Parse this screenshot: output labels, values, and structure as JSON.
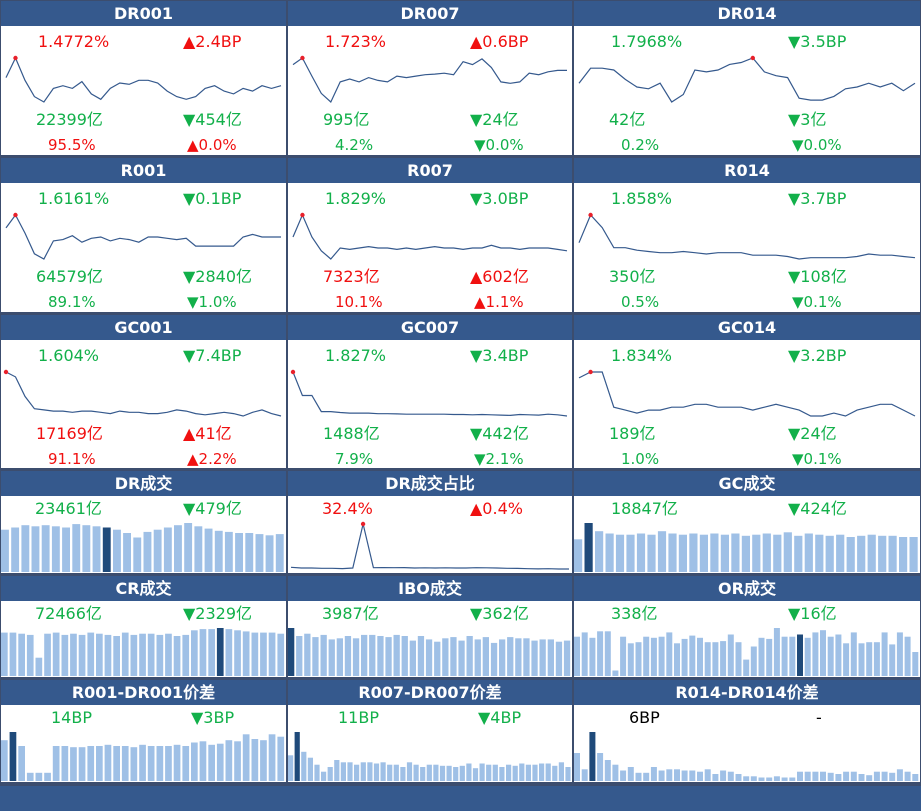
{
  "colors": {
    "header_bg": "#35598d",
    "up": "#f01010",
    "down": "#12b04a",
    "line": "#35598d",
    "bar": "#9fc0e6",
    "bar_hi": "#1f4a7a",
    "marker": "#e8202a"
  },
  "rate_panels": [
    {
      "title": "DR001",
      "rate": "1.4772%",
      "rate_dir": "up",
      "change": "▲2.4BP",
      "change_dir": "up",
      "volume": "22399亿",
      "volume_dir": "down",
      "vol_change": "▼454亿",
      "vol_change_dir": "down",
      "share": "95.5%",
      "share_dir": "up",
      "share_change": "▲0.0%",
      "share_change_dir": "up",
      "series": [
        1.4,
        1.472,
        1.39,
        1.33,
        1.31,
        1.36,
        1.37,
        1.36,
        1.385,
        1.34,
        1.32,
        1.36,
        1.38,
        1.375,
        1.39,
        1.39,
        1.38,
        1.35,
        1.33,
        1.32,
        1.33,
        1.36,
        1.37,
        1.35,
        1.34,
        1.36,
        1.35,
        1.37,
        1.36,
        1.37
      ]
    },
    {
      "title": "DR007",
      "rate": "1.723%",
      "rate_dir": "up",
      "change": "▲0.6BP",
      "change_dir": "up",
      "volume": "995亿",
      "volume_dir": "down",
      "vol_change": "▼24亿",
      "vol_change_dir": "down",
      "share": "4.2%",
      "share_dir": "down",
      "share_change": "▼0.0%",
      "share_change_dir": "down",
      "series": [
        1.7,
        1.723,
        1.66,
        1.6,
        1.57,
        1.64,
        1.65,
        1.64,
        1.655,
        1.645,
        1.64,
        1.66,
        1.655,
        1.66,
        1.665,
        1.667,
        1.67,
        1.665,
        1.71,
        1.7,
        1.72,
        1.69,
        1.64,
        1.635,
        1.64,
        1.67,
        1.665,
        1.675,
        1.68,
        1.68
      ]
    },
    {
      "title": "DR014",
      "rate": "1.7968%",
      "rate_dir": "down",
      "change": "▼3.5BP",
      "change_dir": "down",
      "volume": "42亿",
      "volume_dir": "down",
      "vol_change": "▼3亿",
      "vol_change_dir": "down",
      "share": "0.2%",
      "share_dir": "down",
      "share_change": "▼0.0%",
      "share_change_dir": "down",
      "series": [
        1.73,
        1.77,
        1.77,
        1.765,
        1.74,
        1.72,
        1.715,
        1.73,
        1.68,
        1.7,
        1.765,
        1.76,
        1.765,
        1.78,
        1.785,
        1.797,
        1.76,
        1.75,
        1.745,
        1.69,
        1.685,
        1.685,
        1.695,
        1.715,
        1.72,
        1.73,
        1.72,
        1.73,
        1.71,
        1.73
      ]
    },
    {
      "title": "R001",
      "rate": "1.6161%",
      "rate_dir": "down",
      "change": "▼0.1BP",
      "change_dir": "down",
      "volume": "64579亿",
      "volume_dir": "down",
      "vol_change": "▼2840亿",
      "vol_change_dir": "down",
      "share": "89.1%",
      "share_dir": "down",
      "share_change": "▼1.0%",
      "share_change_dir": "down",
      "series": [
        1.6,
        1.65,
        1.58,
        1.5,
        1.48,
        1.55,
        1.555,
        1.57,
        1.545,
        1.56,
        1.565,
        1.55,
        1.56,
        1.555,
        1.545,
        1.565,
        1.565,
        1.56,
        1.555,
        1.56,
        1.53,
        1.53,
        1.53,
        1.53,
        1.53,
        1.565,
        1.575,
        1.565,
        1.565,
        1.565
      ]
    },
    {
      "title": "R007",
      "rate": "1.829%",
      "rate_dir": "down",
      "change": "▼3.0BP",
      "change_dir": "down",
      "volume": "7323亿",
      "volume_dir": "up",
      "vol_change": "▲602亿",
      "vol_change_dir": "up",
      "share": "10.1%",
      "share_dir": "up",
      "share_change": "▲1.1%",
      "share_change_dir": "up",
      "series": [
        1.78,
        1.86,
        1.78,
        1.73,
        1.7,
        1.74,
        1.735,
        1.74,
        1.745,
        1.74,
        1.74,
        1.735,
        1.74,
        1.735,
        1.74,
        1.745,
        1.74,
        1.74,
        1.735,
        1.74,
        1.74,
        1.75,
        1.74,
        1.74,
        1.735,
        1.74,
        1.74,
        1.74,
        1.735,
        1.73
      ]
    },
    {
      "title": "R014",
      "rate": "1.858%",
      "rate_dir": "down",
      "change": "▼3.7BP",
      "change_dir": "down",
      "volume": "350亿",
      "volume_dir": "down",
      "vol_change": "▼108亿",
      "vol_change_dir": "down",
      "share": "0.5%",
      "share_dir": "down",
      "share_change": "▼0.1%",
      "share_change_dir": "down",
      "series": [
        1.78,
        1.89,
        1.84,
        1.76,
        1.76,
        1.75,
        1.745,
        1.74,
        1.74,
        1.745,
        1.74,
        1.735,
        1.74,
        1.74,
        1.74,
        1.73,
        1.73,
        1.73,
        1.725,
        1.715,
        1.72,
        1.72,
        1.72,
        1.72,
        1.725,
        1.735,
        1.73,
        1.73,
        1.725,
        1.72
      ]
    },
    {
      "title": "GC001",
      "rate": "1.604%",
      "rate_dir": "down",
      "change": "▼7.4BP",
      "change_dir": "down",
      "volume": "17169亿",
      "volume_dir": "up",
      "vol_change": "▲41亿",
      "vol_change_dir": "up",
      "share": "91.1%",
      "share_dir": "up",
      "share_change": "▲2.2%",
      "share_change_dir": "up",
      "series": [
        1.66,
        1.64,
        1.56,
        1.51,
        1.505,
        1.5,
        1.5,
        1.495,
        1.5,
        1.5,
        1.495,
        1.49,
        1.5,
        1.495,
        1.495,
        1.49,
        1.49,
        1.495,
        1.505,
        1.5,
        1.49,
        1.485,
        1.49,
        1.495,
        1.49,
        1.48,
        1.495,
        1.505,
        1.49,
        1.48
      ]
    },
    {
      "title": "GC007",
      "rate": "1.827%",
      "rate_dir": "down",
      "change": "▼3.4BP",
      "change_dir": "down",
      "volume": "1488亿",
      "volume_dir": "down",
      "vol_change": "▼442亿",
      "vol_change_dir": "down",
      "share": "7.9%",
      "share_dir": "down",
      "share_change": "▼2.1%",
      "share_change_dir": "down",
      "series": [
        1.8,
        1.72,
        1.72,
        1.665,
        1.665,
        1.662,
        1.66,
        1.66,
        1.66,
        1.658,
        1.658,
        1.657,
        1.656,
        1.656,
        1.656,
        1.656,
        1.656,
        1.655,
        1.655,
        1.654,
        1.655,
        1.654,
        1.653,
        1.652,
        1.655,
        1.654,
        1.653,
        1.656,
        1.654,
        1.65
      ]
    },
    {
      "title": "GC014",
      "rate": "1.834%",
      "rate_dir": "down",
      "change": "▼3.2BP",
      "change_dir": "down",
      "volume": "189亿",
      "volume_dir": "down",
      "vol_change": "▼24亿",
      "vol_change_dir": "down",
      "share": "1.0%",
      "share_dir": "down",
      "share_change": "▼0.1%",
      "share_change_dir": "down",
      "series": [
        1.81,
        1.82,
        1.82,
        1.76,
        1.755,
        1.75,
        1.755,
        1.755,
        1.76,
        1.76,
        1.765,
        1.765,
        1.76,
        1.76,
        1.76,
        1.755,
        1.76,
        1.765,
        1.76,
        1.755,
        1.745,
        1.745,
        1.75,
        1.745,
        1.755,
        1.76,
        1.765,
        1.765,
        1.755,
        1.745
      ]
    }
  ],
  "volume_panels": [
    {
      "title": "DR成交",
      "value": "23461亿",
      "value_dir": "down",
      "change": "▼479亿",
      "change_dir": "down",
      "kind": "bar",
      "values": [
        38,
        40,
        42,
        41,
        42,
        41,
        40,
        43,
        42,
        41,
        40,
        38,
        35,
        31,
        36,
        38,
        40,
        42,
        44,
        41,
        39,
        37,
        36,
        35,
        35,
        34,
        33,
        34
      ],
      "highlight": 10
    },
    {
      "title": "DR成交占比",
      "value": "32.4%",
      "value_dir": "up",
      "change": "▲0.4%",
      "change_dir": "up",
      "kind": "line",
      "values": [
        2.5,
        2.0,
        2.0,
        1.8,
        1.8,
        1.6,
        2.0,
        32.4,
        2.2,
        2.3,
        2.2,
        2.3,
        2.0,
        2.1,
        2.0,
        2.1,
        2.0,
        2.0,
        2.2,
        2.1,
        2.0,
        1.8,
        1.7,
        1.5,
        1.4,
        1.5,
        1.3,
        1.3
      ]
    },
    {
      "title": "GC成交",
      "value": "18847亿",
      "value_dir": "down",
      "change": "▼424亿",
      "change_dir": "down",
      "kind": "bar",
      "values": [
        28,
        42,
        35,
        33,
        32,
        32,
        33,
        32,
        35,
        33,
        32,
        33,
        32,
        33,
        32,
        33,
        31,
        32,
        33,
        32,
        34,
        31,
        33,
        32,
        31,
        32,
        30,
        31,
        32,
        31,
        31,
        30,
        30
      ],
      "highlight": 1
    },
    {
      "title": "CR成交",
      "value": "72466亿",
      "value_dir": "down",
      "change": "▼2329亿",
      "change_dir": "down",
      "kind": "bar",
      "values": [
        38,
        38,
        37,
        36,
        16,
        37,
        38,
        36,
        37,
        36,
        38,
        37,
        36,
        35,
        38,
        36,
        37,
        37,
        36,
        37,
        35,
        36,
        40,
        41,
        41,
        42,
        41,
        40,
        39,
        38,
        38,
        38,
        37
      ],
      "highlight": 25
    },
    {
      "title": "IBO成交",
      "value": "3987亿",
      "value_dir": "down",
      "change": "▼362亿",
      "change_dir": "down",
      "kind": "bar",
      "values": [
        42,
        35,
        37,
        34,
        36,
        32,
        33,
        35,
        33,
        36,
        36,
        35,
        34,
        36,
        35,
        31,
        35,
        32,
        30,
        33,
        34,
        31,
        35,
        32,
        34,
        29,
        32,
        34,
        33,
        33,
        31,
        32,
        32,
        30,
        31
      ],
      "highlight": 0
    },
    {
      "title": "OR成交",
      "value": "338亿",
      "value_dir": "down",
      "change": "▼16亿",
      "change_dir": "down",
      "kind": "bar",
      "values": [
        36,
        40,
        35,
        41,
        41,
        5,
        36,
        30,
        31,
        36,
        35,
        36,
        40,
        30,
        34,
        37,
        35,
        31,
        31,
        32,
        38,
        31,
        15,
        27,
        35,
        34,
        44,
        36,
        36,
        38,
        35,
        40,
        42,
        36,
        38,
        30,
        40,
        30,
        31,
        31,
        40,
        29,
        40,
        36,
        22
      ],
      "highlight": 29
    }
  ],
  "spread_panels": [
    {
      "title": "R001-DR001价差",
      "value": "14BP",
      "value_dir": "down",
      "change": "▼3BP",
      "change_dir": "down",
      "values": [
        35,
        42,
        30,
        7,
        7,
        7,
        30,
        30,
        29,
        29,
        30,
        30,
        31,
        30,
        30,
        29,
        31,
        30,
        30,
        30,
        31,
        30,
        33,
        34,
        31,
        32,
        35,
        34,
        40,
        36,
        35,
        40,
        38
      ],
      "highlight": 1
    },
    {
      "title": "R007-DR007价差",
      "value": "11BP",
      "value_dir": "down",
      "change": "▼4BP",
      "change_dir": "down",
      "values": [
        22,
        42,
        25,
        20,
        14,
        8,
        12,
        18,
        16,
        16,
        14,
        16,
        16,
        15,
        16,
        14,
        14,
        12,
        16,
        14,
        12,
        14,
        14,
        13,
        13,
        12,
        13,
        15,
        11,
        15,
        14,
        14,
        12,
        14,
        13,
        15,
        14,
        14,
        15,
        15,
        13,
        16,
        12
      ],
      "highlight": 1
    },
    {
      "title": "R014-DR014价差",
      "value": "6BP",
      "value_dir": "black",
      "change": "-",
      "change_dir": "black",
      "values": [
        24,
        10,
        42,
        24,
        18,
        14,
        9,
        12,
        7,
        7,
        12,
        9,
        10,
        10,
        9,
        9,
        8,
        10,
        6,
        9,
        8,
        6,
        4,
        4,
        3,
        3,
        4,
        3,
        3,
        8,
        8,
        8,
        8,
        7,
        6,
        8,
        8,
        6,
        5,
        8,
        8,
        7,
        10,
        8,
        6
      ],
      "highlight": 2
    }
  ]
}
